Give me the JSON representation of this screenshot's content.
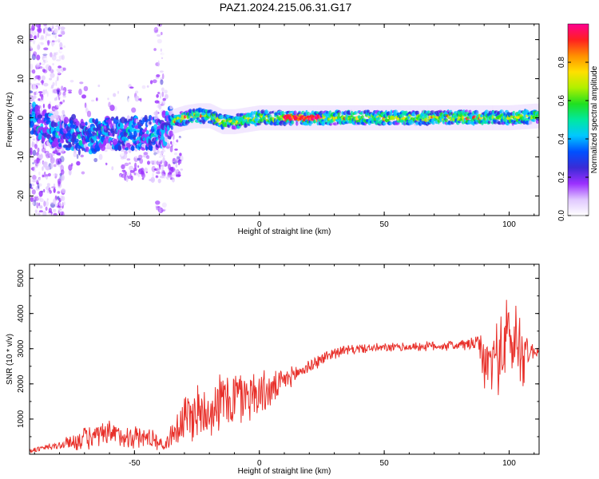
{
  "title": "PAZ1.2024.215.06.31.G17",
  "colors": {
    "snr_line": "#e8302a",
    "frame": "#000000"
  },
  "spectrogram": {
    "chart_data": {
      "type": "heatmap",
      "xlabel": "Height of straight line (km)",
      "ylabel": "Frequency (Hz)",
      "xlim": [
        -92,
        112
      ],
      "ylim": [
        -25,
        24
      ],
      "xticks": [
        -50,
        0,
        50,
        100
      ],
      "yticks": [
        -20,
        -10,
        0,
        10,
        20
      ],
      "colorbar": {
        "label": "Normalized spectral amplitude",
        "range": [
          0,
          1
        ],
        "ticks": [
          0,
          0.2,
          0.4,
          0.6,
          0.8
        ],
        "tick_labels": [
          "0.0",
          "0.2",
          "0.4",
          "0.6",
          "0.8"
        ],
        "colormap": [
          "#ffffff",
          "#e0c8ff",
          "#9b30ff",
          "#3a2bd6",
          "#0050ff",
          "#00c8ff",
          "#00e8a0",
          "#20e020",
          "#b0f000",
          "#ffe000",
          "#ff9000",
          "#ff2020",
          "#ff0090"
        ]
      },
      "ridge": [
        {
          "x": -90,
          "y": -1
        },
        {
          "x": -80,
          "y": -4
        },
        {
          "x": -70,
          "y": -5
        },
        {
          "x": -60,
          "y": -4
        },
        {
          "x": -50,
          "y": -4
        },
        {
          "x": -40,
          "y": -4
        },
        {
          "x": -35,
          "y": -1
        },
        {
          "x": -30,
          "y": 0
        },
        {
          "x": -25,
          "y": 0.5
        },
        {
          "x": -20,
          "y": 0.5
        },
        {
          "x": -15,
          "y": -1
        },
        {
          "x": -10,
          "y": -1
        },
        {
          "x": 0,
          "y": 0
        },
        {
          "x": 20,
          "y": 0
        },
        {
          "x": 50,
          "y": 0
        },
        {
          "x": 80,
          "y": 0
        },
        {
          "x": 100,
          "y": 0
        },
        {
          "x": 112,
          "y": 0.5
        }
      ]
    }
  },
  "snr": {
    "chart_data": {
      "type": "line",
      "xlabel": "Height of straight line (km)",
      "ylabel": "SNR (10 * v/v)",
      "xlim": [
        -92,
        112
      ],
      "ylim": [
        0,
        5400
      ],
      "xticks": [
        -50,
        0,
        50,
        100
      ],
      "yticks": [
        1000,
        2000,
        3000,
        4000,
        5000
      ],
      "series": [
        {
          "envelope": [
            {
              "x": -92,
              "mean": 100,
              "amp": 80
            },
            {
              "x": -80,
              "mean": 250,
              "amp": 150
            },
            {
              "x": -70,
              "mean": 450,
              "amp": 400
            },
            {
              "x": -60,
              "mean": 550,
              "amp": 450
            },
            {
              "x": -50,
              "mean": 500,
              "amp": 400
            },
            {
              "x": -42,
              "mean": 450,
              "amp": 350
            },
            {
              "x": -38,
              "mean": 200,
              "amp": 100
            },
            {
              "x": -35,
              "mean": 600,
              "amp": 500
            },
            {
              "x": -30,
              "mean": 1000,
              "amp": 900
            },
            {
              "x": -25,
              "mean": 1200,
              "amp": 1000
            },
            {
              "x": -20,
              "mean": 1300,
              "amp": 900
            },
            {
              "x": -15,
              "mean": 1500,
              "amp": 1000
            },
            {
              "x": -10,
              "mean": 1600,
              "amp": 1100
            },
            {
              "x": -5,
              "mean": 1700,
              "amp": 900
            },
            {
              "x": 0,
              "mean": 1750,
              "amp": 800
            },
            {
              "x": 5,
              "mean": 1800,
              "amp": 600
            },
            {
              "x": 10,
              "mean": 2100,
              "amp": 350
            },
            {
              "x": 20,
              "mean": 2500,
              "amp": 250
            },
            {
              "x": 30,
              "mean": 2900,
              "amp": 200
            },
            {
              "x": 40,
              "mean": 3000,
              "amp": 150
            },
            {
              "x": 60,
              "mean": 3050,
              "amp": 150
            },
            {
              "x": 80,
              "mean": 3100,
              "amp": 180
            },
            {
              "x": 88,
              "mean": 3150,
              "amp": 300
            },
            {
              "x": 90,
              "mean": 2500,
              "amp": 900
            },
            {
              "x": 95,
              "mean": 2800,
              "amp": 1200
            },
            {
              "x": 100,
              "mean": 3300,
              "amp": 1600
            },
            {
              "x": 105,
              "mean": 3000,
              "amp": 1400
            },
            {
              "x": 108,
              "mean": 2900,
              "amp": 400
            },
            {
              "x": 112,
              "mean": 2950,
              "amp": 150
            }
          ]
        }
      ]
    }
  }
}
